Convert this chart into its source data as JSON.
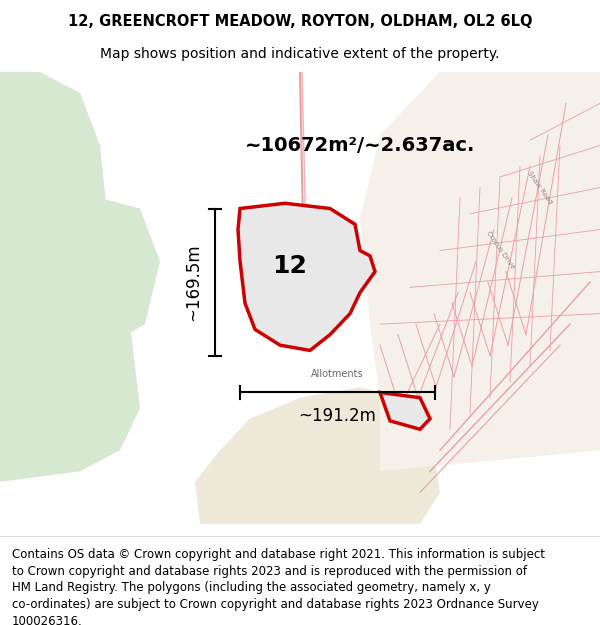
{
  "title_line1": "12, GREENCROFT MEADOW, ROYTON, OLDHAM, OL2 6LQ",
  "title_line2": "Map shows position and indicative extent of the property.",
  "area_label": "~10672m²/~2.637ac.",
  "number_label": "12",
  "height_label": "~169.5m",
  "width_label": "~191.2m",
  "allotments_label": "Allotments",
  "footer_lines": [
    "Contains OS data © Crown copyright and database right 2021. This information is subject",
    "to Crown copyright and database rights 2023 and is reproduced with the permission of",
    "HM Land Registry. The polygons (including the associated geometry, namely x, y",
    "co-ordinates) are subject to Crown copyright and database rights 2023 Ordnance Survey",
    "100026316."
  ],
  "map_bg": "#f0f4ee",
  "green_area_color": "#d6e8d0",
  "property_fill": "#e8e8e8",
  "property_outline": "#cc0000",
  "title_fontsize": 10.5,
  "subtitle_fontsize": 10,
  "footer_fontsize": 8.5,
  "fig_width": 6.0,
  "fig_height": 6.25
}
